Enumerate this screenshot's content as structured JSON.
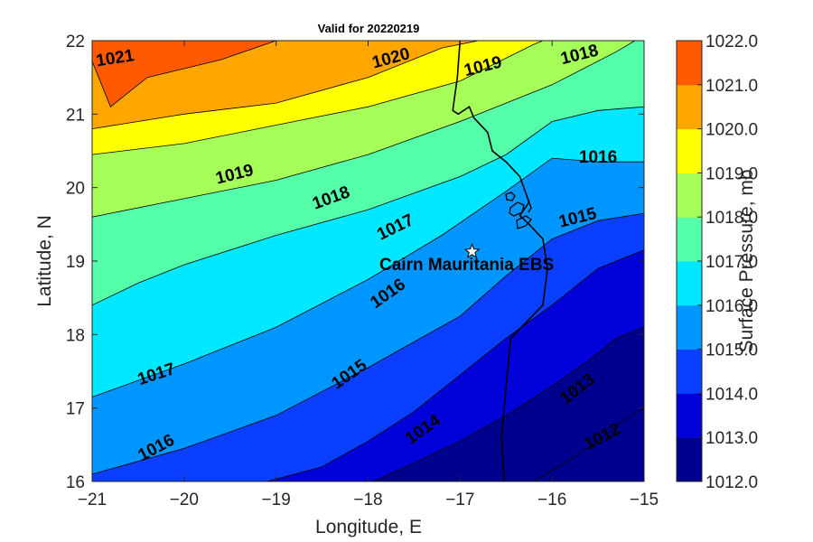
{
  "chart_data": {
    "type": "contour",
    "title": "Valid for 20220219",
    "xlabel": "Longitude, E",
    "ylabel": "Latitude, N",
    "xlim": [
      -21,
      -15
    ],
    "ylim": [
      16,
      22
    ],
    "x_ticks": [
      "−21",
      "−20",
      "−19",
      "−18",
      "−17",
      "−16",
      "−15"
    ],
    "x_tick_values": [
      -21,
      -20,
      -19,
      -18,
      -17,
      -16,
      -15
    ],
    "y_ticks": [
      "16",
      "17",
      "18",
      "19",
      "20",
      "21",
      "22"
    ],
    "y_tick_values": [
      16,
      17,
      18,
      19,
      20,
      21,
      22
    ],
    "colorbar": {
      "label": "Surface Pressure, mb",
      "ticks": [
        "1012.0",
        "1013.0",
        "1014.0",
        "1015.0",
        "1016.0",
        "1017.0",
        "1018.0",
        "1019.0",
        "1020.0",
        "1021.0",
        "1022.0"
      ],
      "levels": [
        1012,
        1013,
        1014,
        1015,
        1016,
        1017,
        1018,
        1019,
        1020,
        1021,
        1022
      ],
      "colors": [
        "#00008f",
        "#0000d8",
        "#0a3fff",
        "#0096ff",
        "#00e8ff",
        "#55ffaa",
        "#a6ff59",
        "#ffff00",
        "#ffa600",
        "#ff5a00"
      ]
    },
    "contours": [
      {
        "level": 1021,
        "label": "1021",
        "points": [
          [
            -21,
            21.72
          ],
          [
            -20.8,
            21.1
          ],
          [
            -20.4,
            21.5
          ],
          [
            -19.6,
            21.74
          ],
          [
            -19,
            22
          ]
        ],
        "labels_at": [
          [
            -20.75,
            21.75,
            -9
          ]
        ]
      },
      {
        "level": 1020,
        "label": "1020",
        "points": [
          [
            -21,
            20.8
          ],
          [
            -20,
            21.0
          ],
          [
            -19,
            21.15
          ],
          [
            -18,
            21.5
          ],
          [
            -17.2,
            21.9
          ],
          [
            -16.8,
            22
          ]
        ],
        "labels_at": [
          [
            -17.75,
            21.75,
            -15
          ]
        ]
      },
      {
        "level": 1019,
        "label": "1019",
        "points": [
          [
            -21,
            20.45
          ],
          [
            -20,
            20.6
          ],
          [
            -19,
            20.85
          ],
          [
            -18,
            21.1
          ],
          [
            -17,
            21.45
          ],
          [
            -16.2,
            21.95
          ],
          [
            -16.1,
            22
          ]
        ],
        "labels_at": [
          [
            -19.45,
            20.17,
            -14
          ],
          [
            -16.75,
            21.64,
            -14
          ]
        ]
      },
      {
        "level": 1018,
        "label": "1018",
        "points": [
          [
            -21,
            19.6
          ],
          [
            -20,
            19.85
          ],
          [
            -19,
            20.1
          ],
          [
            -18,
            20.45
          ],
          [
            -17,
            20.9
          ],
          [
            -16,
            21.4
          ],
          [
            -15.3,
            21.85
          ],
          [
            -15.1,
            22
          ]
        ],
        "labels_at": [
          [
            -18.4,
            19.85,
            -20
          ],
          [
            -15.7,
            21.8,
            -14
          ]
        ]
      },
      {
        "level": 1017,
        "label": "1017",
        "points": [
          [
            -21,
            18.4
          ],
          [
            -20.5,
            18.7
          ],
          [
            -20,
            18.95
          ],
          [
            -19,
            19.35
          ],
          [
            -18,
            19.7
          ],
          [
            -17,
            20.15
          ],
          [
            -16.5,
            20.45
          ],
          [
            -16,
            20.9
          ],
          [
            -15.5,
            21.05
          ],
          [
            -15,
            21.1
          ]
        ],
        "labels_at": [
          [
            -20.3,
            17.45,
            -18
          ],
          [
            -17.7,
            19.45,
            -26
          ]
        ]
      },
      {
        "level": 1016,
        "label": "1016",
        "points": [
          [
            -21,
            17.15
          ],
          [
            -20,
            17.6
          ],
          [
            -19,
            18.1
          ],
          [
            -18,
            18.75
          ],
          [
            -17.2,
            19.35
          ],
          [
            -16.5,
            19.95
          ],
          [
            -16,
            20.4
          ],
          [
            -15.5,
            20.35
          ],
          [
            -15,
            20.35
          ]
        ],
        "labels_at": [
          [
            -20.3,
            16.45,
            -28
          ],
          [
            -17.78,
            18.55,
            -35
          ],
          [
            -15.5,
            20.4,
            0
          ]
        ]
      },
      {
        "level": 1015,
        "label": "1015",
        "points": [
          [
            -21,
            16.1
          ],
          [
            -20,
            16.45
          ],
          [
            -19,
            16.9
          ],
          [
            -18,
            17.55
          ],
          [
            -17,
            18.25
          ],
          [
            -16.5,
            18.8
          ],
          [
            -16,
            19.3
          ],
          [
            -15.5,
            19.55
          ],
          [
            -15,
            19.65
          ]
        ],
        "labels_at": [
          [
            -18.2,
            17.45,
            -35
          ],
          [
            -15.72,
            19.58,
            -14
          ]
        ]
      },
      {
        "level": 1014,
        "label": "1014",
        "points": [
          [
            -19.1,
            16
          ],
          [
            -18.5,
            16.2
          ],
          [
            -18,
            16.55
          ],
          [
            -17.5,
            16.95
          ],
          [
            -17,
            17.45
          ],
          [
            -16.5,
            17.95
          ],
          [
            -16,
            18.4
          ],
          [
            -15.5,
            18.9
          ],
          [
            -15,
            19.15
          ]
        ],
        "labels_at": [
          [
            -17.4,
            16.7,
            -35
          ]
        ]
      },
      {
        "level": 1013,
        "label": "1013",
        "points": [
          [
            -17.95,
            16
          ],
          [
            -17.5,
            16.25
          ],
          [
            -17,
            16.55
          ],
          [
            -16.5,
            16.9
          ],
          [
            -16,
            17.3
          ],
          [
            -15.6,
            17.65
          ],
          [
            -15.3,
            17.95
          ],
          [
            -15,
            18.1
          ]
        ],
        "labels_at": [
          [
            -15.72,
            17.25,
            -38
          ]
        ]
      },
      {
        "level": 1012,
        "label": "1012",
        "points": [
          [
            -16.2,
            16
          ],
          [
            -15.8,
            16.3
          ],
          [
            -15.5,
            16.55
          ],
          [
            -15.2,
            16.85
          ],
          [
            -15,
            17.0
          ]
        ],
        "labels_at": [
          [
            -15.45,
            16.6,
            -28
          ]
        ]
      }
    ],
    "coastline": [
      [
        -16.52,
        16
      ],
      [
        -16.55,
        16.6
      ],
      [
        -16.5,
        17.3
      ],
      [
        -16.45,
        17.95
      ],
      [
        -16.1,
        18.4
      ],
      [
        -16.05,
        18.9
      ],
      [
        -16.1,
        19.3
      ],
      [
        -16.25,
        19.5
      ],
      [
        -16.35,
        19.62
      ],
      [
        -16.25,
        19.8
      ],
      [
        -16.35,
        20.15
      ],
      [
        -16.5,
        20.35
      ],
      [
        -16.65,
        20.5
      ],
      [
        -16.7,
        20.75
      ],
      [
        -16.85,
        20.95
      ],
      [
        -16.9,
        21.1
      ],
      [
        -17.02,
        21.0
      ],
      [
        -17.08,
        21.05
      ],
      [
        -17.03,
        21.5
      ],
      [
        -17.0,
        22
      ]
    ],
    "marker": {
      "lon": -16.87,
      "lat": 19.13,
      "label": "Cairn Mauritania EBS"
    }
  }
}
